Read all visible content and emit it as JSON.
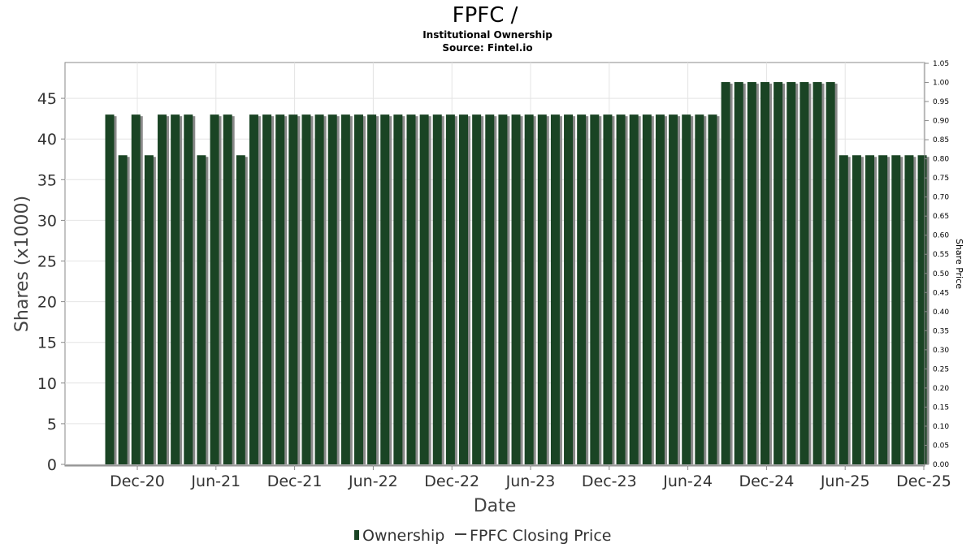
{
  "chart_data": {
    "type": "bar",
    "title": "FPFC /",
    "subtitle_lines": [
      "Institutional Ownership",
      "Source: Fintel.io"
    ],
    "xlabel": "Date",
    "ylabel": "Shares (x1000)",
    "y2label": "Share Price",
    "ylim": [
      0,
      48
    ],
    "y2lim": [
      0,
      1.05
    ],
    "yticks": [
      "0",
      "5",
      "10",
      "15",
      "20",
      "25",
      "30",
      "35",
      "40",
      "45"
    ],
    "y2ticks": [
      "0.00",
      "0.05",
      "0.10",
      "0.15",
      "0.20",
      "0.25",
      "0.30",
      "0.35",
      "0.40",
      "0.45",
      "0.50",
      "0.55",
      "0.60",
      "0.65",
      "0.70",
      "0.75",
      "0.80",
      "0.85",
      "0.90",
      "0.95",
      "1.00",
      "1.05"
    ],
    "xticks": [
      "Dec-20",
      "Jun-21",
      "Dec-21",
      "Jun-22",
      "Dec-22",
      "Jun-23",
      "Dec-23",
      "Jun-24",
      "Dec-24",
      "Jun-25",
      "Dec-25"
    ],
    "grid": true,
    "legend_position": "bottom",
    "series": [
      {
        "name": "Ownership",
        "color": "#1a4424",
        "values": [
          43,
          38,
          43,
          38,
          43,
          43,
          43,
          38,
          43,
          43,
          38,
          43,
          43,
          43,
          43,
          43,
          43,
          43,
          43,
          43,
          43,
          43,
          43,
          43,
          43,
          43,
          43,
          43,
          43,
          43,
          43,
          43,
          43,
          43,
          43,
          43,
          43,
          43,
          43,
          43,
          43,
          43,
          43,
          43,
          43,
          43,
          43,
          47,
          47,
          47,
          47,
          47,
          47,
          47,
          47,
          47,
          38,
          38,
          38,
          38,
          38,
          38,
          38
        ]
      },
      {
        "name": "FPFC Closing Price",
        "color": "#000000",
        "values": []
      }
    ]
  }
}
